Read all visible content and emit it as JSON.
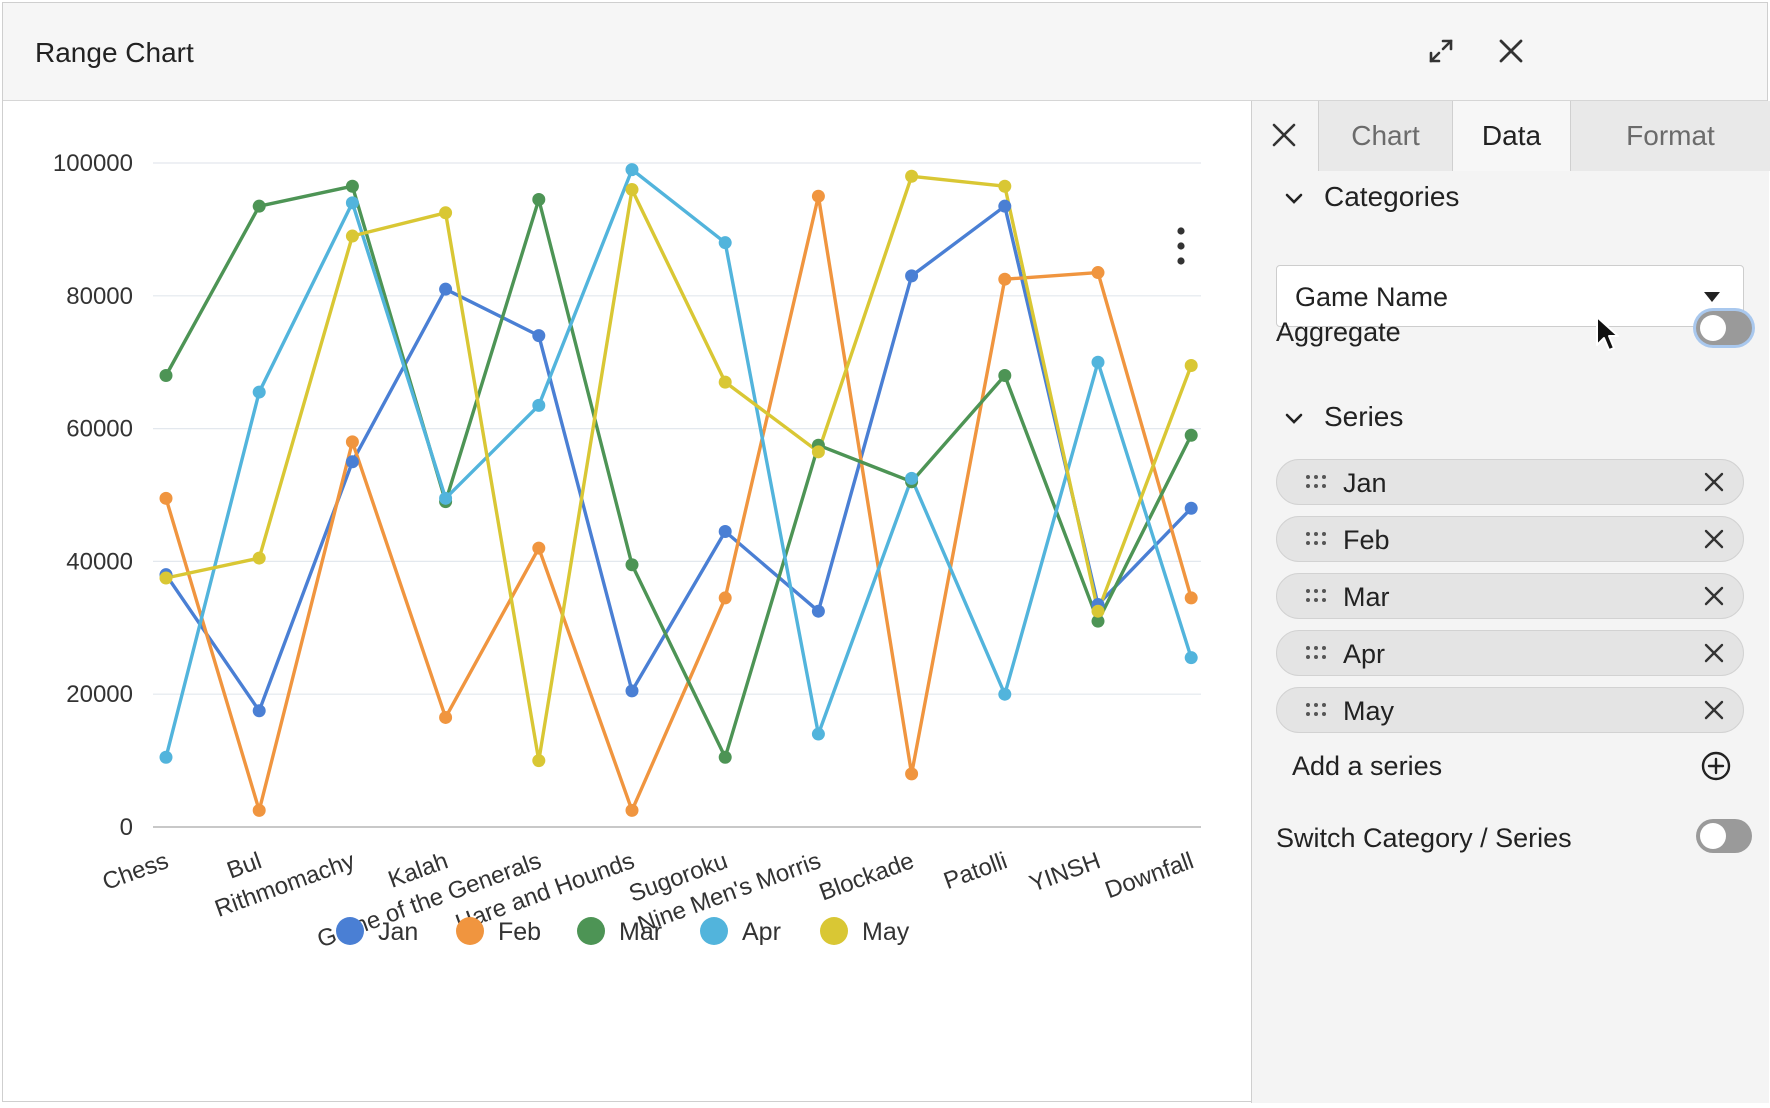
{
  "window": {
    "title": "Range Chart"
  },
  "panel": {
    "tabs": [
      {
        "label": "Chart",
        "active": false
      },
      {
        "label": "Data",
        "active": true
      },
      {
        "label": "Format",
        "active": false
      }
    ],
    "categories": {
      "header": "Categories",
      "selected": "Game Name"
    },
    "aggregate": {
      "label": "Aggregate",
      "on": false
    },
    "series": {
      "header": "Series",
      "items": [
        {
          "name": "Jan"
        },
        {
          "name": "Feb"
        },
        {
          "name": "Mar"
        },
        {
          "name": "Apr"
        },
        {
          "name": "May"
        }
      ],
      "add_label": "Add a series"
    },
    "switch": {
      "label": "Switch Category / Series",
      "on": false
    }
  },
  "chart_data": {
    "type": "line",
    "categories": [
      "Chess",
      "Bul",
      "Rithmomachy",
      "Kalah",
      "Game of the Generals",
      "Hare and Hounds",
      "Sugoroku",
      "Nine Men's Morris",
      "Blockade",
      "Patolli",
      "YINSH",
      "Downfall"
    ],
    "ylim": [
      0,
      100000
    ],
    "yticks": [
      0,
      20000,
      40000,
      60000,
      80000,
      100000
    ],
    "ytick_labels": [
      "0",
      "20000",
      "40000",
      "60000",
      "80000",
      "100000"
    ],
    "grid": true,
    "legend": "bottom",
    "series": [
      {
        "name": "Jan",
        "color": "#4a7fd4",
        "values": [
          38000,
          17500,
          55000,
          81000,
          74000,
          20500,
          44500,
          32500,
          83000,
          93500,
          33500,
          48000
        ]
      },
      {
        "name": "Feb",
        "color": "#f0953f",
        "values": [
          49500,
          2500,
          58000,
          16500,
          42000,
          2500,
          34500,
          95000,
          8000,
          82500,
          83500,
          34500
        ]
      },
      {
        "name": "Mar",
        "color": "#4d9455",
        "values": [
          68000,
          93500,
          96500,
          49000,
          94500,
          39500,
          10500,
          57500,
          52000,
          68000,
          31000,
          59000
        ]
      },
      {
        "name": "Apr",
        "color": "#52b4dc",
        "values": [
          10500,
          65500,
          94000,
          49500,
          63500,
          99000,
          88000,
          14000,
          52500,
          20000,
          70000,
          25500
        ]
      },
      {
        "name": "May",
        "color": "#d9c734",
        "values": [
          37500,
          40500,
          89000,
          92500,
          10000,
          96000,
          67000,
          56500,
          98000,
          96500,
          32500,
          69500
        ]
      }
    ]
  }
}
